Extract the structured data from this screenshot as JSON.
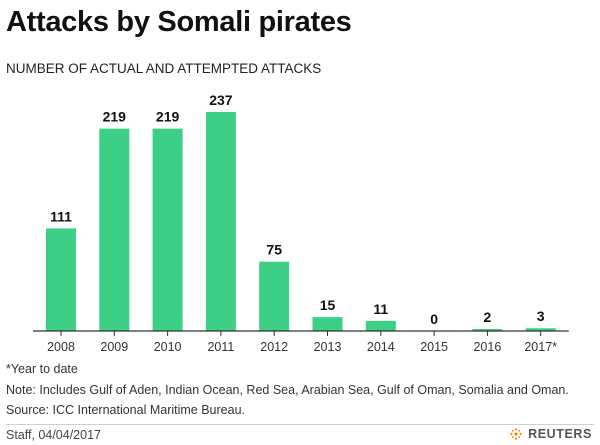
{
  "title": "Attacks by Somali pirates",
  "subtitle": "NUMBER OF ACTUAL AND ATTEMPTED ATTACKS",
  "chart_data": {
    "type": "bar",
    "categories": [
      "2008",
      "2009",
      "2010",
      "2011",
      "2012",
      "2013",
      "2014",
      "2015",
      "2016",
      "2017*"
    ],
    "values": [
      111,
      219,
      219,
      237,
      75,
      15,
      11,
      0,
      2,
      3
    ],
    "ylim": [
      0,
      237
    ],
    "xlabel": "",
    "ylabel": "",
    "bar_color": "#3ccf85",
    "axis_color": "#333333"
  },
  "notes": {
    "ytd": "*Year to date",
    "note": "Note: Includes Gulf of Aden, Indian Ocean, Red Sea, Arabian Sea, Gulf of Oman, Somalia and Oman.",
    "source": "Source: ICC International Maritime Bureau."
  },
  "footer": {
    "credit": "Staff,  04/04/2017",
    "brand": "REUTERS",
    "brand_icon": "reuters-logo-icon"
  }
}
